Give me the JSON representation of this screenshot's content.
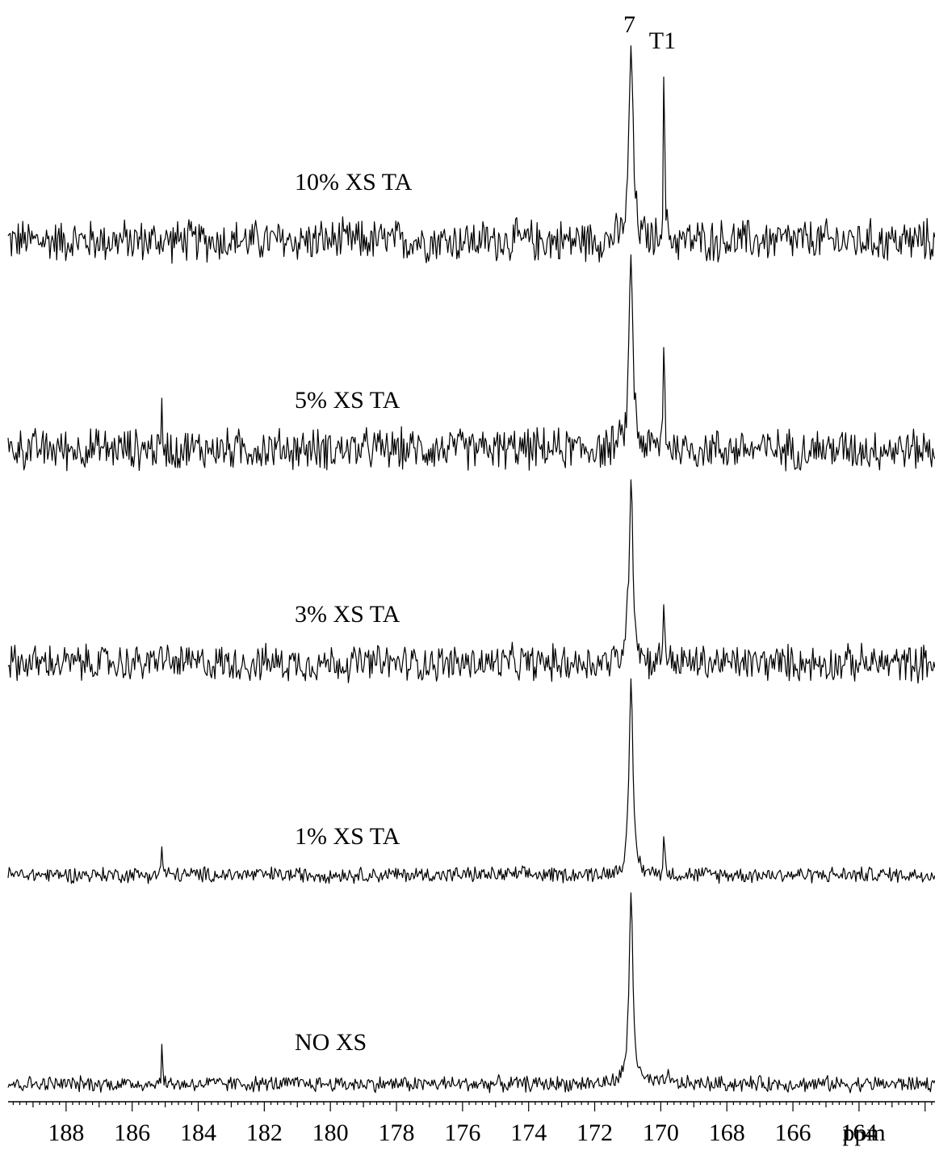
{
  "chart_data": {
    "type": "line",
    "xlabel": "ppm",
    "x_axis": {
      "unit": "ppm",
      "reversed": true,
      "xlim": [
        190.0,
        161.7
      ],
      "tick_labels": [
        "188",
        "186",
        "184",
        "182",
        "180",
        "178",
        "176",
        "174",
        "172",
        "170",
        "168",
        "166",
        "164"
      ]
    },
    "peak_labels": [
      {
        "text": "7",
        "ppm": 170.9
      },
      {
        "text": "T1",
        "ppm": 169.9
      }
    ],
    "series": [
      {
        "name": "10% XS TA",
        "noise_level": 0.09,
        "peaks": [
          {
            "ppm": 170.9,
            "height": 1.0,
            "width": 0.07
          },
          {
            "ppm": 169.9,
            "height": 0.88,
            "width": 0.025
          }
        ]
      },
      {
        "name": "5% XS TA",
        "noise_level": 0.09,
        "peaks": [
          {
            "ppm": 185.1,
            "height": 0.19,
            "width": 0.02
          },
          {
            "ppm": 170.9,
            "height": 1.0,
            "width": 0.07
          },
          {
            "ppm": 169.9,
            "height": 0.6,
            "width": 0.025
          }
        ]
      },
      {
        "name": "3% XS TA",
        "noise_level": 0.08,
        "peaks": [
          {
            "ppm": 185.1,
            "height": 0.16,
            "width": 0.02
          },
          {
            "ppm": 170.9,
            "height": 1.0,
            "width": 0.07
          },
          {
            "ppm": 169.9,
            "height": 0.4,
            "width": 0.025
          }
        ]
      },
      {
        "name": "1% XS TA",
        "noise_level": 0.035,
        "peaks": [
          {
            "ppm": 185.1,
            "height": 0.16,
            "width": 0.02
          },
          {
            "ppm": 170.9,
            "height": 1.0,
            "width": 0.07
          },
          {
            "ppm": 169.9,
            "height": 0.22,
            "width": 0.025
          }
        ]
      },
      {
        "name": "NO XS",
        "noise_level": 0.035,
        "peaks": [
          {
            "ppm": 185.1,
            "height": 0.2,
            "width": 0.02
          },
          {
            "ppm": 170.9,
            "height": 1.0,
            "width": 0.07
          },
          {
            "ppm": 169.8,
            "height": 0.08,
            "width": 0.025
          }
        ]
      }
    ]
  }
}
